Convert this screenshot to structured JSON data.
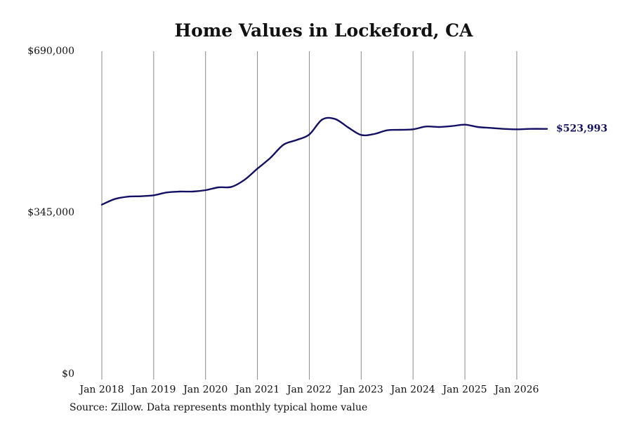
{
  "chart_data": {
    "type": "line",
    "title": "Home Values in Lockeford, CA",
    "xlabel": "",
    "ylabel": "",
    "source": "Source: Zillow. Data represents monthly typical home value",
    "x_range": [
      "2018-01",
      "2026-08"
    ],
    "ylim": [
      0,
      690000
    ],
    "y_ticks": [
      {
        "value": 0,
        "label": "$0"
      },
      {
        "value": 345000,
        "label": "$345,000"
      },
      {
        "value": 690000,
        "label": "$690,000"
      }
    ],
    "x_ticks": [
      {
        "date": "2018-01",
        "label": "Jan 2018"
      },
      {
        "date": "2019-01",
        "label": "Jan 2019"
      },
      {
        "date": "2020-01",
        "label": "Jan 2020"
      },
      {
        "date": "2021-01",
        "label": "Jan 2021"
      },
      {
        "date": "2022-01",
        "label": "Jan 2022"
      },
      {
        "date": "2023-01",
        "label": "Jan 2023"
      },
      {
        "date": "2024-01",
        "label": "Jan 2024"
      },
      {
        "date": "2025-01",
        "label": "Jan 2025"
      },
      {
        "date": "2026-01",
        "label": "Jan 2026"
      }
    ],
    "grid": "vertical",
    "series": [
      {
        "color": "#131063",
        "end_label": "$523,993",
        "points": [
          {
            "x": "2018-01",
            "y": 362000
          },
          {
            "x": "2018-04",
            "y": 374000
          },
          {
            "x": "2018-07",
            "y": 379000
          },
          {
            "x": "2018-10",
            "y": 380000
          },
          {
            "x": "2019-01",
            "y": 382000
          },
          {
            "x": "2019-04",
            "y": 388000
          },
          {
            "x": "2019-07",
            "y": 390000
          },
          {
            "x": "2019-10",
            "y": 390000
          },
          {
            "x": "2020-01",
            "y": 393000
          },
          {
            "x": "2020-04",
            "y": 399000
          },
          {
            "x": "2020-07",
            "y": 400000
          },
          {
            "x": "2020-10",
            "y": 415000
          },
          {
            "x": "2021-01",
            "y": 439000
          },
          {
            "x": "2021-04",
            "y": 462000
          },
          {
            "x": "2021-07",
            "y": 490000
          },
          {
            "x": "2021-10",
            "y": 500000
          },
          {
            "x": "2022-01",
            "y": 512000
          },
          {
            "x": "2022-04",
            "y": 544000
          },
          {
            "x": "2022-07",
            "y": 545000
          },
          {
            "x": "2022-10",
            "y": 527000
          },
          {
            "x": "2023-01",
            "y": 511000
          },
          {
            "x": "2023-04",
            "y": 513000
          },
          {
            "x": "2023-07",
            "y": 521000
          },
          {
            "x": "2023-10",
            "y": 522000
          },
          {
            "x": "2024-01",
            "y": 523000
          },
          {
            "x": "2024-04",
            "y": 529000
          },
          {
            "x": "2024-07",
            "y": 528000
          },
          {
            "x": "2024-10",
            "y": 530000
          },
          {
            "x": "2025-01",
            "y": 533000
          },
          {
            "x": "2025-04",
            "y": 528000
          },
          {
            "x": "2025-07",
            "y": 526000
          },
          {
            "x": "2025-10",
            "y": 524000
          },
          {
            "x": "2026-01",
            "y": 523000
          },
          {
            "x": "2026-04",
            "y": 524000
          },
          {
            "x": "2026-08",
            "y": 523993
          }
        ]
      }
    ]
  }
}
